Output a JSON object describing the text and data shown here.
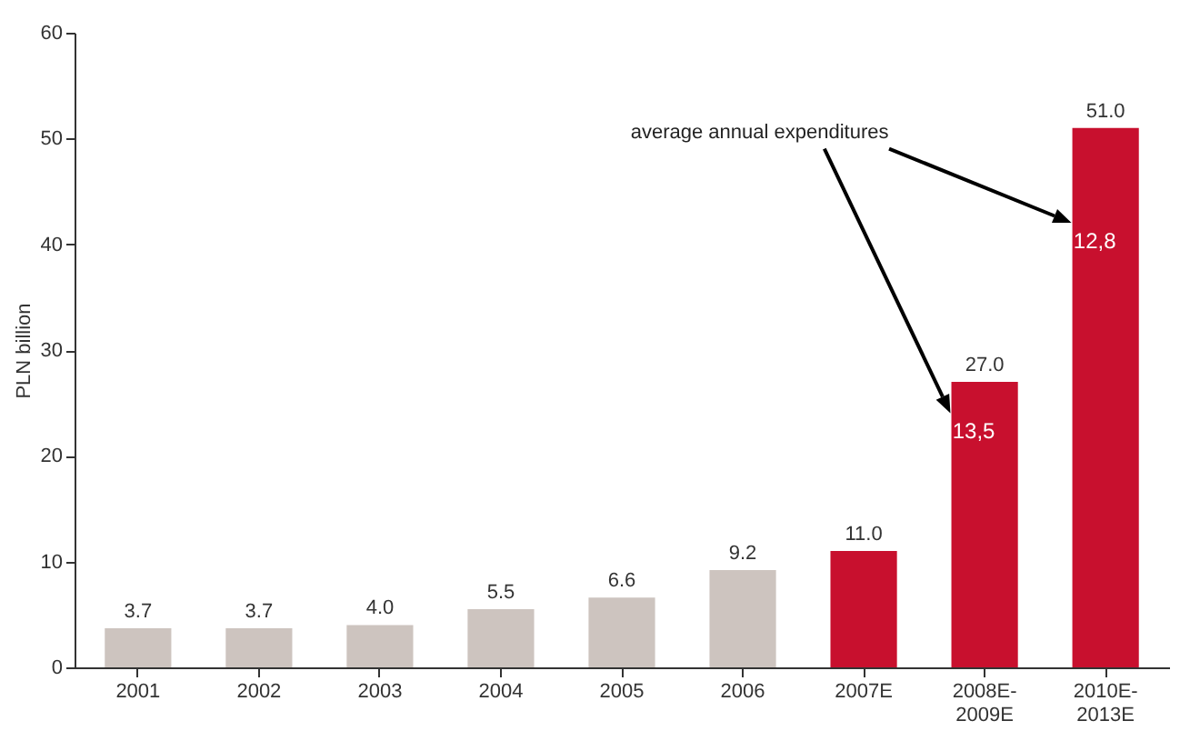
{
  "chart_data": {
    "type": "bar",
    "ylabel": "PLN billion",
    "categories": [
      "2001",
      "2002",
      "2003",
      "2004",
      "2005",
      "2006",
      "2007E",
      "2008E-2009E",
      "2010E-2013E"
    ],
    "values": [
      3.7,
      3.7,
      4.0,
      5.5,
      6.6,
      9.2,
      11.0,
      27.0,
      51.0
    ],
    "colors": [
      "#cdc4bf",
      "#cdc4bf",
      "#cdc4bf",
      "#cdc4bf",
      "#cdc4bf",
      "#cdc4bf",
      "#c8102e",
      "#c8102e",
      "#c8102e"
    ],
    "value_labels": [
      "3.7",
      "3.7",
      "4.0",
      "5.5",
      "6.6",
      "9.2",
      "11.0",
      "27.0",
      "51.0"
    ],
    "ylim": [
      0,
      60
    ],
    "yticks": [
      0,
      10,
      20,
      30,
      40,
      50,
      60
    ],
    "grid": false,
    "annotations": [
      "average annual expenditures",
      "13,5",
      "12,8"
    ]
  }
}
